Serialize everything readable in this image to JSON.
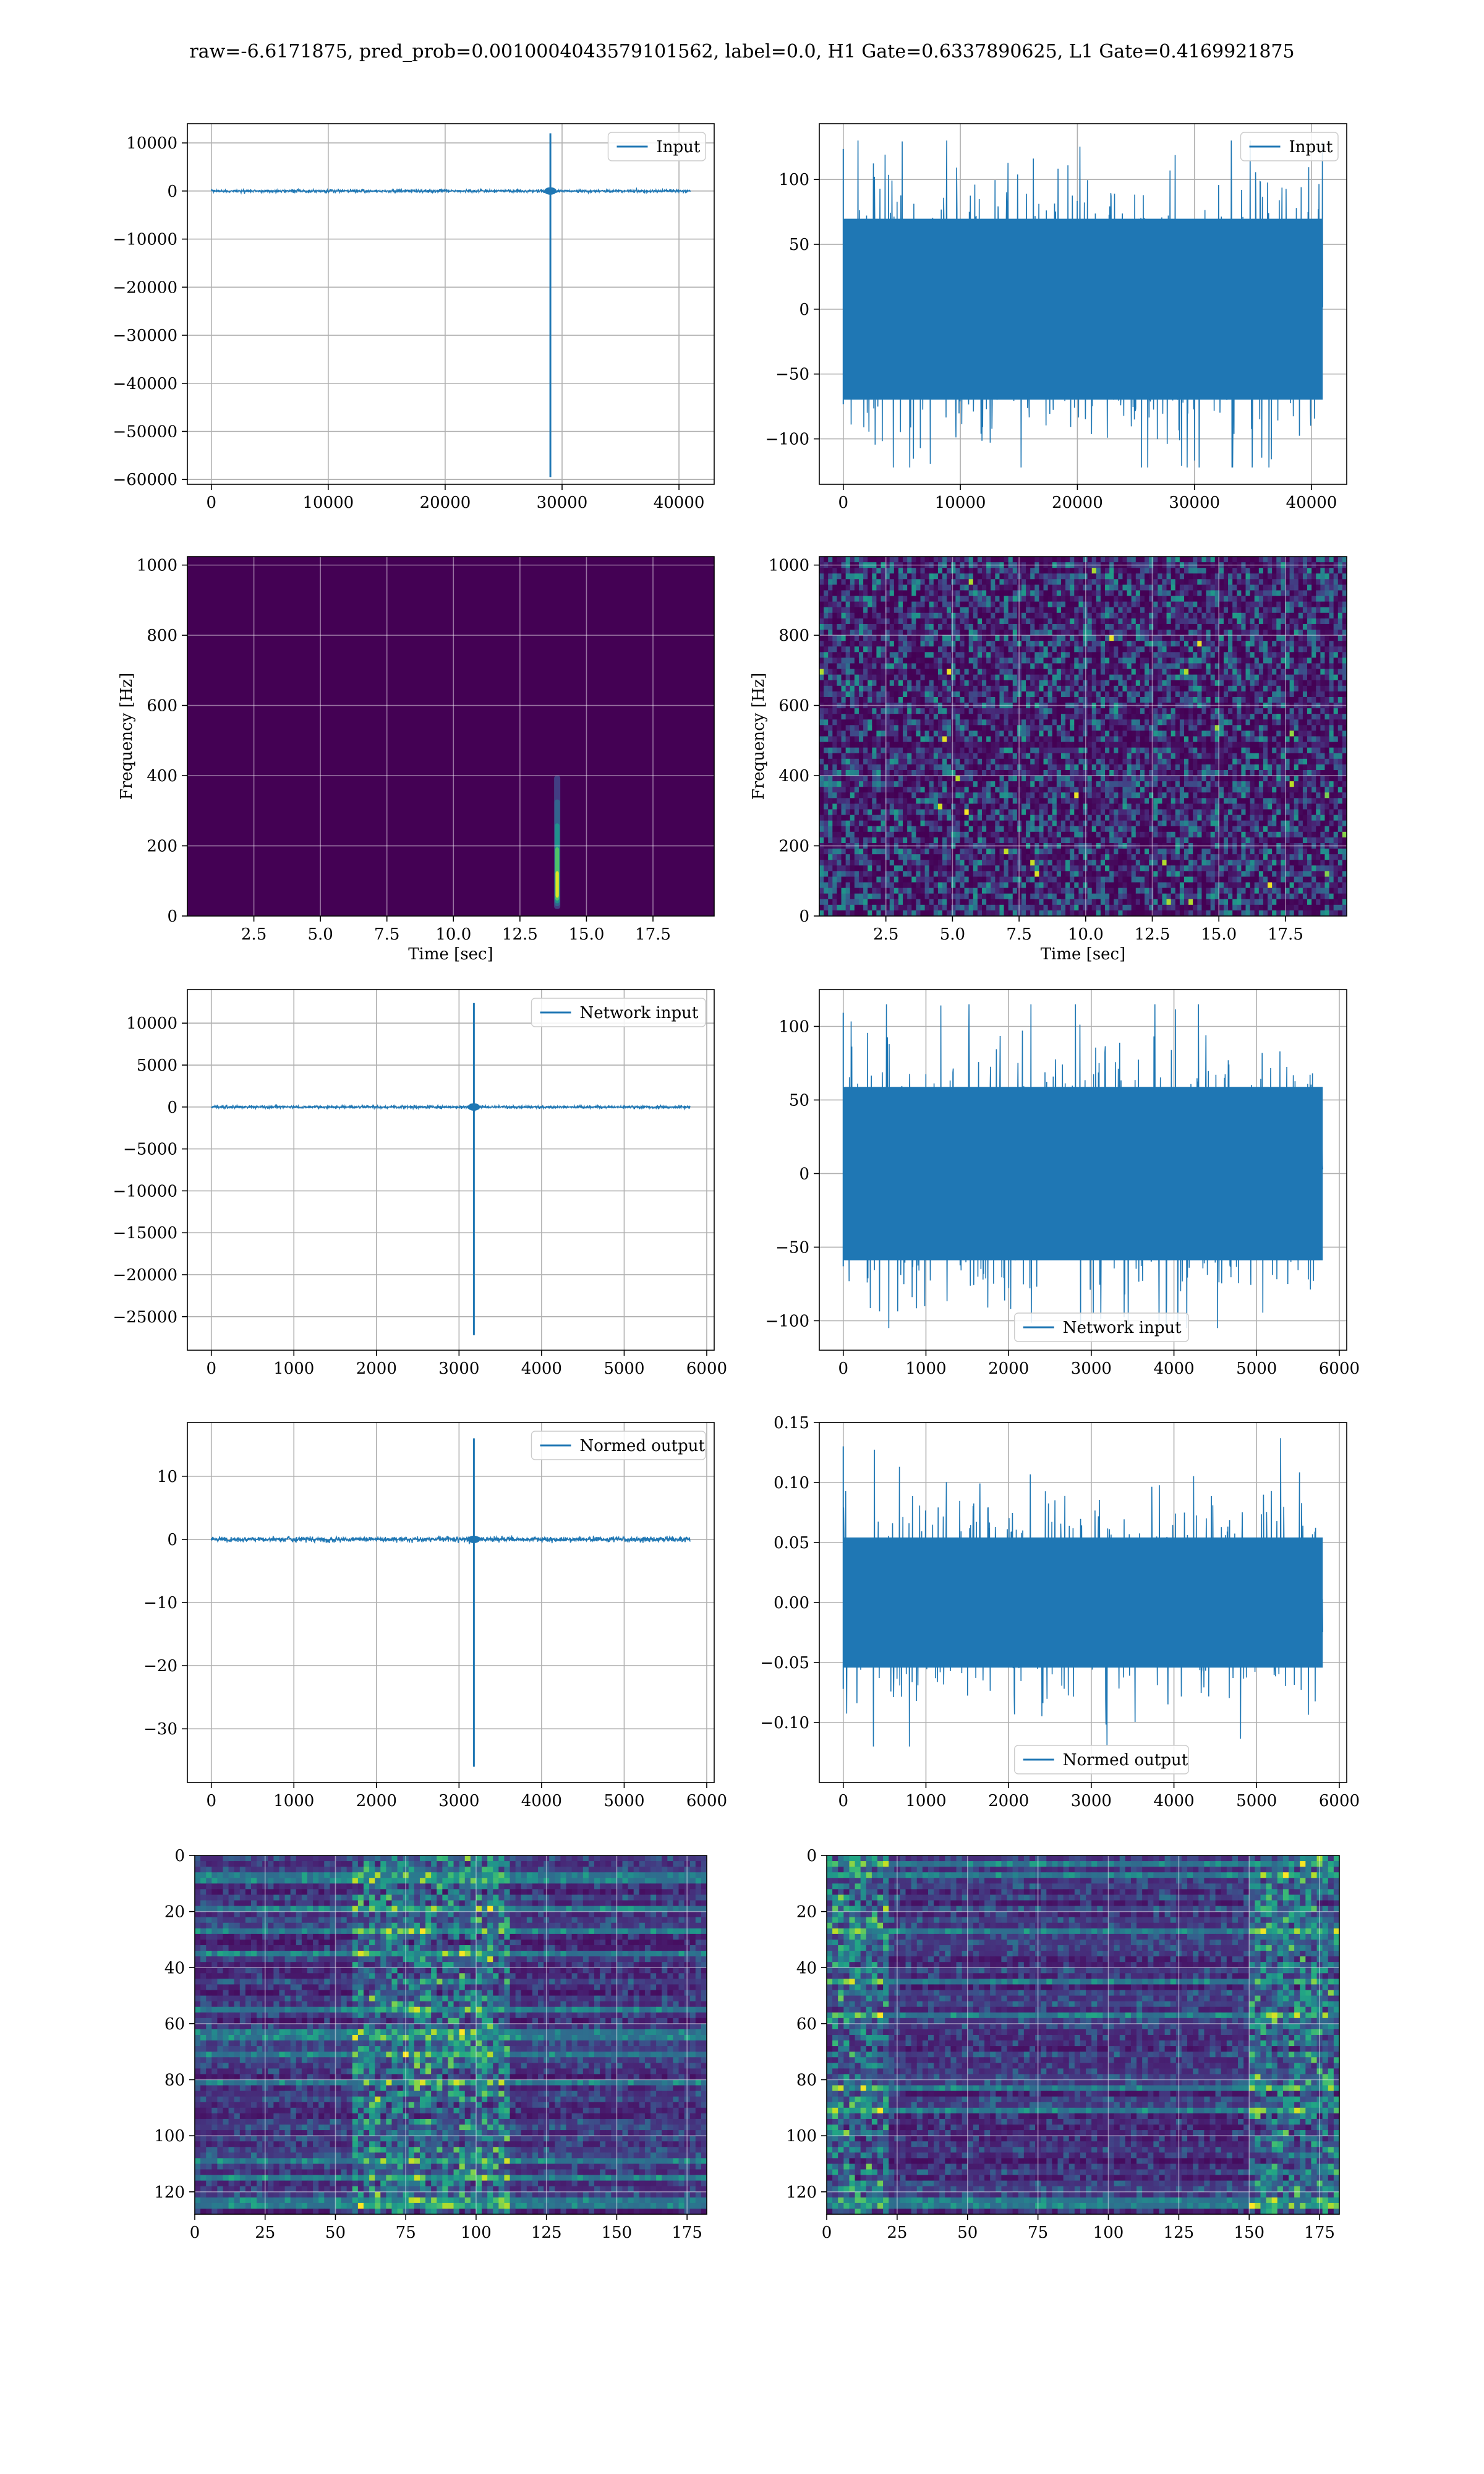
{
  "figure_title": "raw=-6.6171875, pred_prob=0.0010004043579101562, label=0.0, H1 Gate=0.6337890625, L1 Gate=0.4169921875",
  "colors": {
    "line": "#1f77b4",
    "viridis_dark": "#440154",
    "grid": "#b0b0b0"
  },
  "chart_data": [
    {
      "id": "h1-input",
      "type": "line",
      "series": [
        {
          "name": "Input"
        }
      ],
      "legend": "upper right",
      "x_range": [
        0,
        40960
      ],
      "spike_x": 29000,
      "spike_min": -59500,
      "spike_max": 12000,
      "noise_amp": 150,
      "xlim": [
        -2050,
        43010
      ],
      "ylim": [
        -61000,
        14000
      ],
      "xticks": [
        0,
        10000,
        20000,
        30000,
        40000
      ],
      "yticks": [
        10000,
        0,
        -10000,
        -20000,
        -30000,
        -40000,
        -50000,
        -60000
      ],
      "grid": true
    },
    {
      "id": "l1-input",
      "type": "line",
      "series": [
        {
          "name": "Input"
        }
      ],
      "legend": "upper right",
      "x_range": [
        0,
        40960
      ],
      "noise_amp": 45,
      "y_peak_max": 130,
      "y_peak_min": -122,
      "xlim": [
        -2050,
        43010
      ],
      "ylim": [
        -135,
        143
      ],
      "xticks": [
        0,
        10000,
        20000,
        30000,
        40000
      ],
      "yticks": [
        100,
        50,
        0,
        -50,
        -100
      ],
      "grid": true
    },
    {
      "id": "h1-spectrogram",
      "type": "heatmap",
      "colormap": "viridis",
      "xlabel": "Time [sec]",
      "ylabel": "Frequency [Hz]",
      "xlim": [
        0,
        19.8
      ],
      "ylim": [
        0,
        1024
      ],
      "xticks": [
        2.5,
        5.0,
        7.5,
        10.0,
        12.5,
        15.0,
        17.5
      ],
      "yticks": [
        0,
        200,
        400,
        600,
        800,
        1000
      ],
      "blip_time": 13.9,
      "blip_freq_max": 400,
      "grid": true
    },
    {
      "id": "l1-spectrogram",
      "type": "heatmap",
      "colormap": "viridis",
      "xlabel": "Time [sec]",
      "ylabel": "Frequency [Hz]",
      "xlim": [
        0,
        19.8
      ],
      "ylim": [
        0,
        1024
      ],
      "xticks": [
        2.5,
        5.0,
        7.5,
        10.0,
        12.5,
        15.0,
        17.5
      ],
      "yticks": [
        0,
        200,
        400,
        600,
        800,
        1000
      ],
      "grid": true
    },
    {
      "id": "h1-network-input",
      "type": "line",
      "series": [
        {
          "name": "Network input"
        }
      ],
      "legend": "upper right",
      "x_range": [
        0,
        5800
      ],
      "spike_x": 3180,
      "spike_min": -27200,
      "spike_max": 12400,
      "noise_amp": 80,
      "xlim": [
        -290,
        6090
      ],
      "ylim": [
        -29000,
        14000
      ],
      "xticks": [
        0,
        1000,
        2000,
        3000,
        4000,
        5000,
        6000
      ],
      "yticks": [
        10000,
        5000,
        0,
        -5000,
        -10000,
        -15000,
        -20000,
        -25000
      ],
      "grid": true
    },
    {
      "id": "l1-network-input",
      "type": "line",
      "series": [
        {
          "name": "Network input"
        }
      ],
      "legend": "lower center",
      "x_range": [
        0,
        5800
      ],
      "noise_amp": 38,
      "y_peak_max": 115,
      "y_peak_min": -105,
      "xlim": [
        -290,
        6090
      ],
      "ylim": [
        -120,
        125
      ],
      "xticks": [
        0,
        1000,
        2000,
        3000,
        4000,
        5000,
        6000
      ],
      "yticks": [
        100,
        50,
        0,
        -50,
        -100
      ],
      "grid": true
    },
    {
      "id": "h1-normed-output",
      "type": "line",
      "series": [
        {
          "name": "Normed output"
        }
      ],
      "legend": "upper right",
      "x_range": [
        0,
        5800
      ],
      "spike_x": 3180,
      "spike_min": -36,
      "spike_max": 16,
      "noise_amp": 0.2,
      "xlim": [
        -290,
        6090
      ],
      "ylim": [
        -38.5,
        18.5
      ],
      "xticks": [
        0,
        1000,
        2000,
        3000,
        4000,
        5000,
        6000
      ],
      "yticks": [
        10,
        0,
        -10,
        -20,
        -30
      ],
      "grid": true
    },
    {
      "id": "l1-normed-output",
      "type": "line",
      "series": [
        {
          "name": "Normed output"
        }
      ],
      "legend": "lower center",
      "x_range": [
        0,
        5800
      ],
      "noise_amp": 0.035,
      "y_peak_max": 0.137,
      "y_peak_min": -0.12,
      "xlim": [
        -290,
        6090
      ],
      "ylim": [
        -0.15,
        0.15
      ],
      "xticks": [
        0,
        1000,
        2000,
        3000,
        4000,
        5000,
        6000
      ],
      "yticks": [
        0.15,
        0.1,
        0.05,
        0.0,
        -0.05,
        -0.1
      ],
      "grid": true
    },
    {
      "id": "h1-features",
      "type": "heatmap",
      "colormap": "viridis",
      "xlim": [
        0,
        182
      ],
      "ylim": [
        128,
        0
      ],
      "xticks": [
        0,
        25,
        50,
        75,
        100,
        125,
        150,
        175
      ],
      "yticks": [
        0,
        20,
        40,
        60,
        80,
        100,
        120
      ],
      "hot_band_x": [
        55,
        110
      ],
      "grid": true
    },
    {
      "id": "l1-features",
      "type": "heatmap",
      "colormap": "viridis",
      "xlim": [
        0,
        182
      ],
      "ylim": [
        128,
        0
      ],
      "xticks": [
        0,
        25,
        50,
        75,
        100,
        125,
        150,
        175
      ],
      "yticks": [
        0,
        20,
        40,
        60,
        80,
        100,
        120
      ],
      "hot_band_x": [
        0,
        20
      ],
      "hot_band_x2": [
        150,
        182
      ],
      "grid": true
    }
  ]
}
